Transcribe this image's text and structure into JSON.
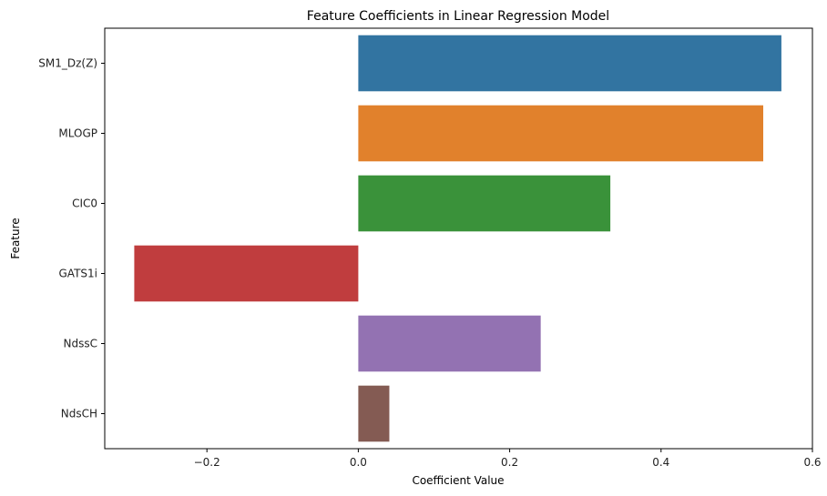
{
  "chart_data": {
    "type": "bar",
    "orientation": "horizontal",
    "title": "Feature Coefficients in Linear Regression Model",
    "xlabel": "Coefficient Value",
    "ylabel": "Feature",
    "categories": [
      "SM1_Dz(Z)",
      "MLOGP",
      "CIC0",
      "GATS1i",
      "NdssC",
      "NdsCH"
    ],
    "values": [
      0.559,
      0.535,
      0.333,
      -0.296,
      0.241,
      0.041
    ],
    "colors": [
      "#3274a1",
      "#e1812c",
      "#3a923a",
      "#c03d3e",
      "#9372b2",
      "#845b53"
    ],
    "xlim": [
      -0.335,
      0.6
    ],
    "xticks": [
      -0.2,
      0.0,
      0.2,
      0.4,
      0.6
    ],
    "xtick_labels": [
      "−0.2",
      "0.0",
      "0.2",
      "0.4",
      "0.6"
    ],
    "grid": false,
    "legend": "none"
  }
}
